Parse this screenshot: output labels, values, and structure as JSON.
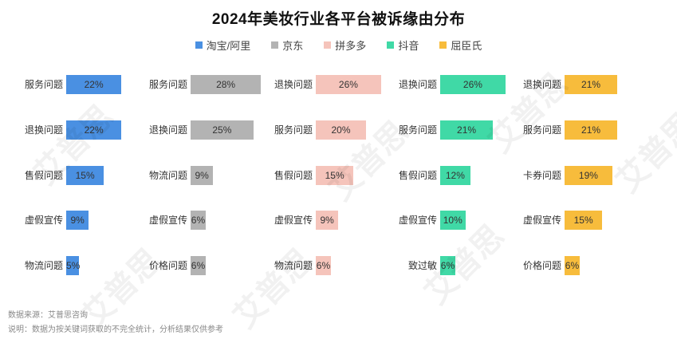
{
  "chart_data": {
    "type": "bar",
    "title": "2024年美妆行业各平台被诉缘由分布",
    "legend": [
      {
        "name": "淘宝/阿里",
        "color": "#4a90e2"
      },
      {
        "name": "京东",
        "color": "#b3b3b3"
      },
      {
        "name": "拼多多",
        "color": "#f5c4bb"
      },
      {
        "name": "抖音",
        "color": "#40d9a6"
      },
      {
        "name": "屈臣氏",
        "color": "#f7bc3c"
      }
    ],
    "series": [
      {
        "name": "淘宝/阿里",
        "color": "#4a90e2",
        "categories": [
          "服务问题",
          "退换问题",
          "售假问题",
          "虚假宣传",
          "物流问题"
        ],
        "values": [
          22,
          22,
          15,
          9,
          5
        ]
      },
      {
        "name": "京东",
        "color": "#b3b3b3",
        "categories": [
          "服务问题",
          "退换问题",
          "物流问题",
          "虚假宣传",
          "价格问题"
        ],
        "values": [
          28,
          25,
          9,
          6,
          6
        ]
      },
      {
        "name": "拼多多",
        "color": "#f5c4bb",
        "categories": [
          "退换问题",
          "服务问题",
          "售假问题",
          "虚假宣传",
          "物流问题"
        ],
        "values": [
          26,
          20,
          15,
          9,
          6
        ]
      },
      {
        "name": "抖音",
        "color": "#40d9a6",
        "categories": [
          "退换问题",
          "服务问题",
          "售假问题",
          "虚假宣传",
          "致过敏"
        ],
        "values": [
          26,
          21,
          12,
          10,
          6
        ]
      },
      {
        "name": "屈臣氏",
        "color": "#f7bc3c",
        "categories": [
          "退换问题",
          "服务问题",
          "卡券问题",
          "虚假宣传",
          "价格问题"
        ],
        "values": [
          21,
          21,
          19,
          15,
          6
        ]
      }
    ],
    "value_suffix": "%"
  },
  "footer": {
    "source": "数据来源：艾普思咨询",
    "note": "说明：数据为按关键词获取的不完全统计，分析结果仅供参考"
  },
  "watermark_text": "艾普思"
}
